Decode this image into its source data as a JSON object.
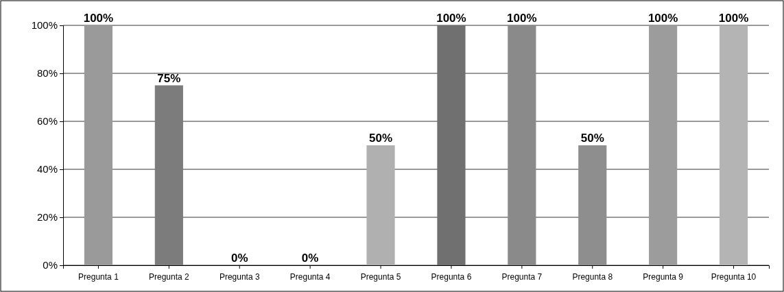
{
  "chart_data": {
    "type": "bar",
    "categories": [
      "Pregunta 1",
      "Pregunta 2",
      "Pregunta 3",
      "Pregunta 4",
      "Pregunta 5",
      "Pregunta 6",
      "Pregunta 7",
      "Pregunta 8",
      "Pregunta 9",
      "Pregunta 10"
    ],
    "values": [
      100,
      75,
      0,
      0,
      50,
      100,
      100,
      50,
      100,
      100
    ],
    "value_labels": [
      "100%",
      "75%",
      "0%",
      "0%",
      "50%",
      "100%",
      "100%",
      "50%",
      "100%",
      "100%"
    ],
    "colors": [
      "#9a9a9a",
      "#7c7c7c",
      "#888888",
      "#888888",
      "#b0b0b0",
      "#707070",
      "#8a8a8a",
      "#8e8e8e",
      "#9c9c9c",
      "#b4b4b4"
    ],
    "ylim": [
      0,
      100
    ],
    "yticks": [
      {
        "value": 0,
        "label": "0%"
      },
      {
        "value": 20,
        "label": "20%"
      },
      {
        "value": 40,
        "label": "40%"
      },
      {
        "value": 60,
        "label": "60%"
      },
      {
        "value": 80,
        "label": "80%"
      },
      {
        "value": 100,
        "label": "100%"
      }
    ],
    "grid": "y"
  }
}
